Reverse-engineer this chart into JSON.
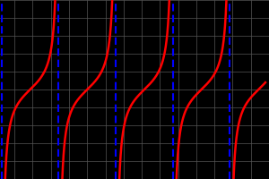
{
  "background_color": "#000000",
  "grid_color": "#555555",
  "curve_color": "#ff0000",
  "asymptote_color": "#0000ff",
  "curve_linewidth": 1.8,
  "asymptote_linewidth": 1.5,
  "xlim": [
    -4.8,
    9.8
  ],
  "ylim": [
    -5.0,
    5.0
  ],
  "grid_xticks_every": 1.0,
  "grid_yticks_every": 1.0,
  "figsize": [
    3.0,
    2.0
  ],
  "dpi": 100
}
